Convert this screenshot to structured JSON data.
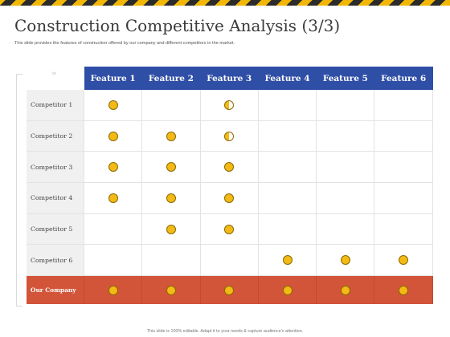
{
  "title": "Construction Competitive Analysis (3/3)",
  "subtitle": "This slide provides the features of construction offered by our company and different competitors in the market.",
  "footer": "This slide is 100% editable. Adapt it to your needs & capture audience's attention.",
  "colors": {
    "header_bg": "#2f4ea6",
    "our_company_bg": "#d2553a",
    "dot_fill": "#f3b915",
    "hazard_yellow": "#f2b705",
    "hazard_black": "#2b2b2b"
  },
  "features": [
    "Feature 1",
    "Feature 2",
    "Feature 3",
    "Feature 4",
    "Feature 5",
    "Feature 6"
  ],
  "rows": [
    {
      "label": "Competitor 1",
      "marks": [
        "full",
        "none",
        "half",
        "none",
        "none",
        "none"
      ]
    },
    {
      "label": "Competitor 2",
      "marks": [
        "full",
        "full",
        "half",
        "none",
        "none",
        "none"
      ]
    },
    {
      "label": "Competitor 3",
      "marks": [
        "full",
        "full",
        "full",
        "none",
        "none",
        "none"
      ]
    },
    {
      "label": "Competitor 4",
      "marks": [
        "full",
        "full",
        "full",
        "none",
        "none",
        "none"
      ]
    },
    {
      "label": "Competitor 5",
      "marks": [
        "none",
        "full",
        "full",
        "none",
        "none",
        "none"
      ]
    },
    {
      "label": "Competitor 6",
      "marks": [
        "none",
        "none",
        "none",
        "full",
        "full",
        "full"
      ]
    },
    {
      "label": "Our Company",
      "marks": [
        "full",
        "full",
        "full",
        "full",
        "full",
        "full"
      ]
    }
  ]
}
